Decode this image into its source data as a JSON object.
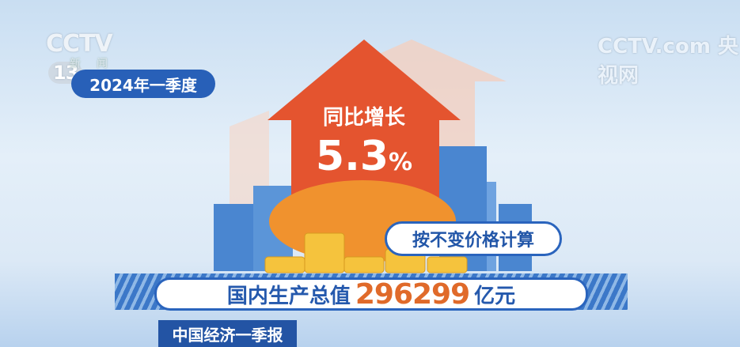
{
  "logo": {
    "brand": "CCTV",
    "channel": "13",
    "subtitle": "新闻"
  },
  "watermark": "CCTV.com 央视网",
  "period": "2024年一季度",
  "growth": {
    "label": "同比增长",
    "value": "5.3",
    "unit": "%"
  },
  "note": "按不变价格计算",
  "gdp": {
    "label": "国内生产总值",
    "value": "296299",
    "unit": "亿元"
  },
  "program": "中国经济一季报",
  "colors": {
    "blue": "#2860b8",
    "orange": "#e06a2a",
    "arrow": "#e4542f"
  }
}
